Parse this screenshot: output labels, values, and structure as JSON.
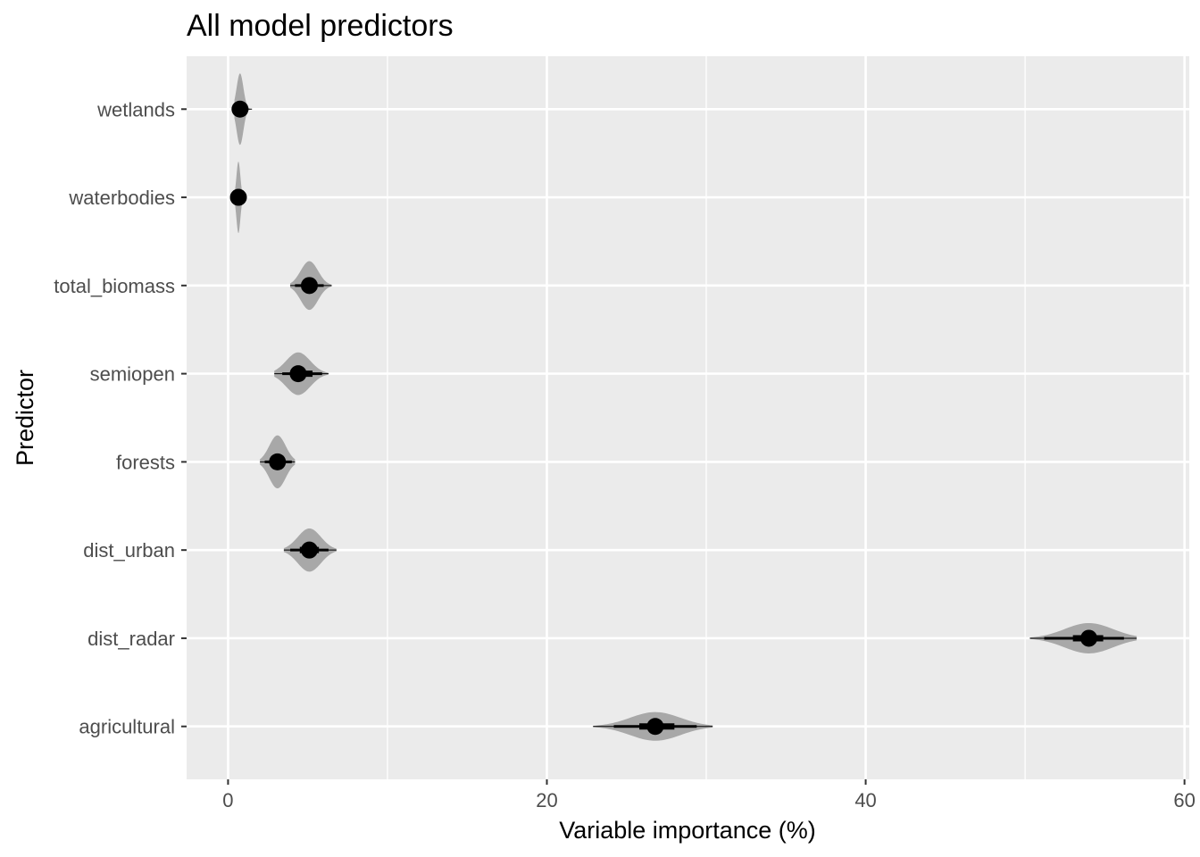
{
  "chart_data": {
    "type": "scatter",
    "title": "All model predictors",
    "xlabel": "Variable importance (%)",
    "ylabel": "Predictor",
    "xlim": [
      -2.6,
      60.3
    ],
    "x_ticks": [
      0,
      20,
      40,
      60
    ],
    "x_tick_labels": [
      "0",
      "20",
      "40",
      "60"
    ],
    "categories": [
      "agricultural",
      "dist_radar",
      "dist_urban",
      "forests",
      "semiopen",
      "total_biomass",
      "waterbodies",
      "wetlands"
    ],
    "series": [
      {
        "points": [
          {
            "predictor": "agricultural",
            "median": 26.8,
            "inner_interval": [
              25.8,
              28.0
            ],
            "outer_interval": [
              24.2,
              29.4
            ],
            "range": [
              22.9,
              30.4
            ]
          },
          {
            "predictor": "dist_radar",
            "median": 54.0,
            "inner_interval": [
              53.0,
              54.9
            ],
            "outer_interval": [
              51.2,
              56.2
            ],
            "range": [
              50.3,
              57.0
            ]
          },
          {
            "predictor": "dist_urban",
            "median": 5.1,
            "inner_interval": [
              4.5,
              5.7
            ],
            "outer_interval": [
              3.9,
              6.3
            ],
            "range": [
              3.5,
              6.8
            ]
          },
          {
            "predictor": "forests",
            "median": 3.1,
            "inner_interval": [
              2.7,
              3.5
            ],
            "outer_interval": [
              2.3,
              4.0
            ],
            "range": [
              2.0,
              4.2
            ]
          },
          {
            "predictor": "semiopen",
            "median": 4.4,
            "inner_interval": [
              3.9,
              5.3
            ],
            "outer_interval": [
              3.4,
              5.9
            ],
            "range": [
              2.9,
              6.3
            ]
          },
          {
            "predictor": "total_biomass",
            "median": 5.1,
            "inner_interval": [
              4.6,
              5.6
            ],
            "outer_interval": [
              4.2,
              6.0
            ],
            "range": [
              3.9,
              6.5
            ]
          },
          {
            "predictor": "waterbodies",
            "median": 0.65,
            "inner_interval": [
              0.55,
              0.8
            ],
            "outer_interval": [
              0.5,
              0.9
            ],
            "range": [
              0.4,
              1.1
            ]
          },
          {
            "predictor": "wetlands",
            "median": 0.75,
            "inner_interval": [
              0.6,
              0.95
            ],
            "outer_interval": [
              0.5,
              1.2
            ],
            "range": [
              0.4,
              1.5
            ]
          }
        ]
      }
    ],
    "grid": true,
    "legend": "none",
    "colors": {
      "panel_background": "#ebebeb",
      "grid_line": "#ffffff",
      "point": "#000000",
      "density": "#a8a8a8",
      "tick_text": "#4d4d4d",
      "tick_mark": "#333333"
    }
  }
}
